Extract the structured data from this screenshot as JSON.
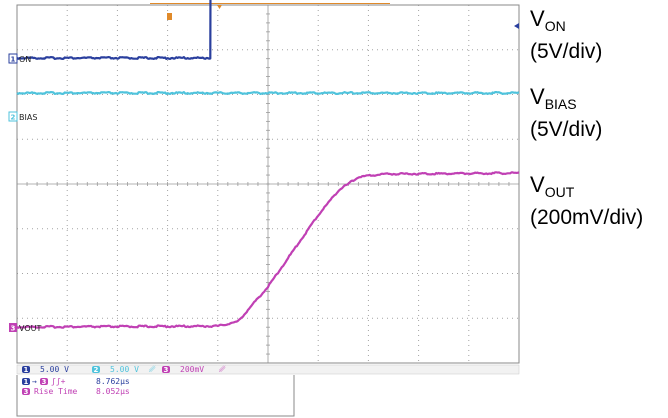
{
  "chart_data": {
    "type": "line",
    "title": "",
    "grid": true,
    "divisions": {
      "x": 10,
      "y": 8
    },
    "series": [
      {
        "name": "ON",
        "channel": "1",
        "color": "#2a3f9e",
        "scale_label": "5.00 V",
        "samples": [
          [
            0,
            0.9
          ],
          [
            3.85,
            0.9
          ],
          [
            3.86,
            4.2
          ],
          [
            10,
            4.2
          ]
        ]
      },
      {
        "name": "BIAS",
        "channel": "2",
        "color": "#4fc3dc",
        "scale_label": "5.00 V",
        "samples": [
          [
            0,
            4.2
          ],
          [
            10,
            4.2
          ]
        ]
      },
      {
        "name": "VOUT",
        "channel": "3",
        "color": "#c040b4",
        "scale_label": "200mV",
        "samples": [
          [
            0,
            0
          ],
          [
            4.0,
            0.02
          ],
          [
            4.4,
            0.12
          ],
          [
            5.0,
            0.9
          ],
          [
            5.5,
            1.7
          ],
          [
            6.0,
            2.5
          ],
          [
            6.4,
            3.05
          ],
          [
            6.8,
            3.35
          ],
          [
            7.3,
            3.42
          ],
          [
            10,
            3.44
          ]
        ]
      }
    ],
    "legend": {
      "position": "right",
      "entries": [
        {
          "main": "V",
          "sub": "ON",
          "scale": "(5V/div)"
        },
        {
          "main": "V",
          "sub": "BIAS",
          "scale": "(5V/div)"
        },
        {
          "main": "V",
          "sub": "OUT",
          "scale": "(200mV/div)"
        }
      ]
    },
    "status": {
      "ch1_num": "1",
      "ch1_scale": "5.00 V",
      "ch2_num": "2",
      "ch2_scale": "5.00 V",
      "ch3_num": "3",
      "ch3_scale": "200mV",
      "meas1_a": "1",
      "meas1_b": "3",
      "meas1_value": "8.762µs",
      "meas2_ch": "3",
      "meas2_name": "Rise Time",
      "meas2_value": "8.052µs"
    }
  },
  "colors": {
    "ch1": "#2a3f9e",
    "ch2": "#4fc3dc",
    "ch3": "#c040b4",
    "grid": "#9a9a9a",
    "trigger": "#e08a2a"
  }
}
